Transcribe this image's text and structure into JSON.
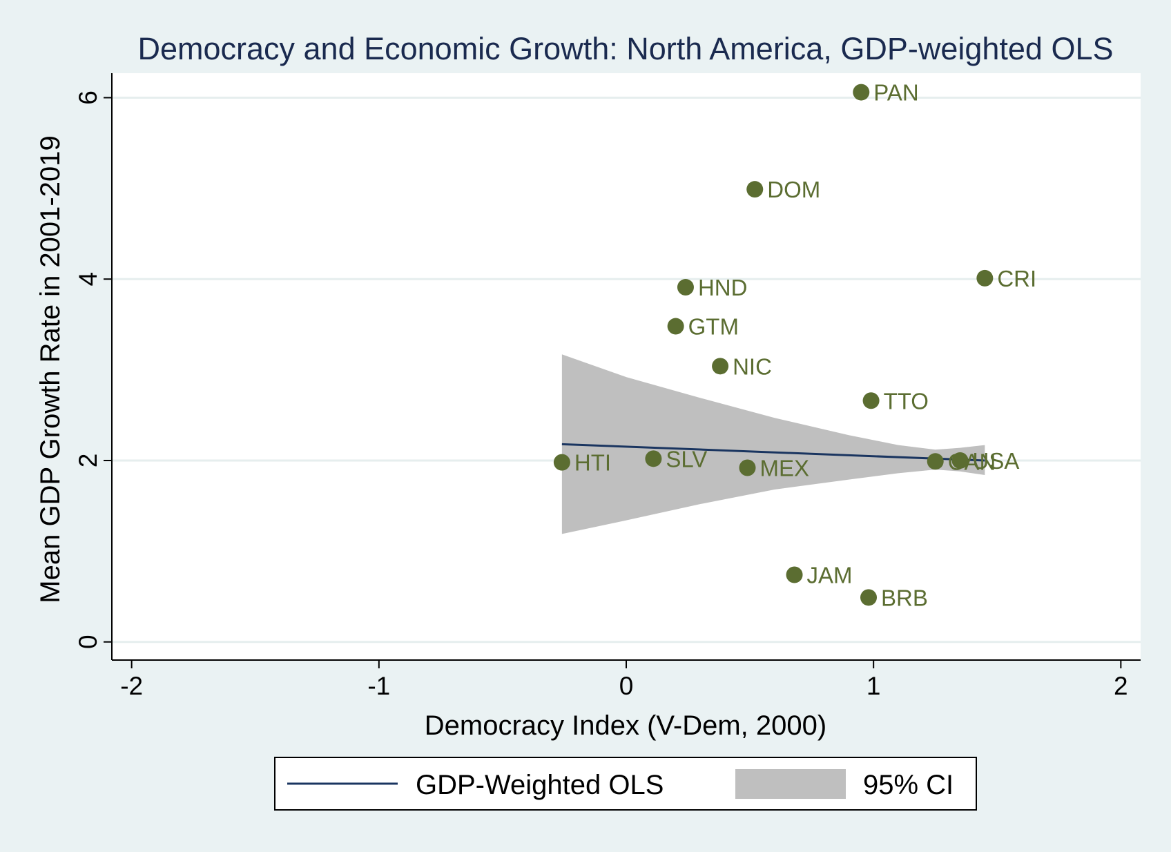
{
  "chart_data": {
    "type": "scatter",
    "title": "Democracy and Economic Growth: North America, GDP-weighted OLS",
    "xlabel": "Democracy Index (V-Dem, 2000)",
    "ylabel": "Mean GDP Growth Rate in 2001-2019",
    "xlim": [
      -2.08,
      2.08
    ],
    "ylim": [
      -0.2,
      6.27
    ],
    "x_ticks": [
      -2,
      -1,
      0,
      1,
      2
    ],
    "x_tick_labels": [
      "-2",
      "-1",
      "0",
      "1",
      "2"
    ],
    "y_ticks": [
      0,
      2,
      4,
      6
    ],
    "y_tick_labels": [
      "0",
      "2",
      "4",
      "6"
    ],
    "grid": true,
    "legend_position": "bottom",
    "points": [
      {
        "label": "PAN",
        "x": 0.95,
        "y": 6.06
      },
      {
        "label": "DOM",
        "x": 0.52,
        "y": 4.99
      },
      {
        "label": "CRI",
        "x": 1.45,
        "y": 4.01
      },
      {
        "label": "HND",
        "x": 0.24,
        "y": 3.91
      },
      {
        "label": "GTM",
        "x": 0.2,
        "y": 3.48
      },
      {
        "label": "NIC",
        "x": 0.38,
        "y": 3.04
      },
      {
        "label": "TTO",
        "x": 0.99,
        "y": 2.66
      },
      {
        "label": "HTI",
        "x": -0.26,
        "y": 1.98
      },
      {
        "label": "SLV",
        "x": 0.11,
        "y": 2.02
      },
      {
        "label": "MEX",
        "x": 0.49,
        "y": 1.92
      },
      {
        "label": "CAN",
        "x": 1.25,
        "y": 1.99
      },
      {
        "label": "USA",
        "x": 1.35,
        "y": 2.0
      },
      {
        "label": "JAM",
        "x": 0.68,
        "y": 0.74
      },
      {
        "label": "BRB",
        "x": 0.98,
        "y": 0.49
      }
    ],
    "fit_line": {
      "name": "GDP-Weighted OLS",
      "x": [
        -0.26,
        1.45
      ],
      "y": [
        2.18,
        2.0
      ]
    },
    "ci_band": {
      "name": "95% CI",
      "x": [
        -0.26,
        0.0,
        0.3,
        0.6,
        0.9,
        1.1,
        1.25,
        1.35,
        1.45
      ],
      "upper": [
        3.17,
        2.92,
        2.69,
        2.47,
        2.28,
        2.17,
        2.12,
        2.14,
        2.17
      ],
      "lower": [
        1.19,
        1.34,
        1.52,
        1.68,
        1.79,
        1.86,
        1.9,
        1.88,
        1.84
      ]
    },
    "legend": [
      {
        "label": "GDP-Weighted OLS",
        "kind": "line"
      },
      {
        "label": "95% CI",
        "kind": "area"
      }
    ],
    "colors": {
      "background": "#eaf2f3",
      "plot_area": "#ffffff",
      "gridline": "#e6eeee",
      "point": "#5b6d31",
      "label": "#5b6d31",
      "fit_line": "#1a3560",
      "ci_fill": "#bfbfbf",
      "title": "#1a2a4f"
    }
  }
}
